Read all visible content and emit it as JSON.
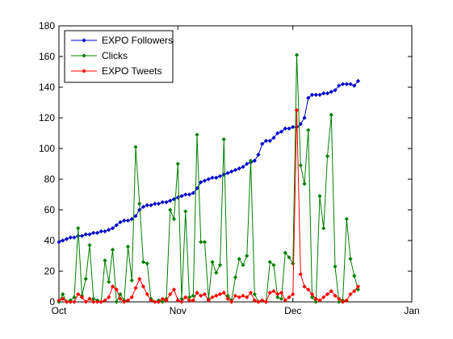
{
  "chart_data": {
    "type": "line",
    "title": "",
    "xlabel": "",
    "ylabel": "",
    "x_ticks": [
      "Oct",
      "Nov",
      "Dec",
      "Jan"
    ],
    "xlim": [
      "2012-10-01",
      "2013-01-01"
    ],
    "ylim": [
      0,
      180
    ],
    "y_ticks": [
      0,
      20,
      40,
      60,
      80,
      100,
      120,
      140,
      160,
      180
    ],
    "grid": false,
    "legend_position": "top-left",
    "series": [
      {
        "name": "EXPO Followers",
        "color": "#0000cc",
        "marker": "diamond",
        "x": [
          "2012-10-01",
          "2012-10-02",
          "2012-10-03",
          "2012-10-04",
          "2012-10-05",
          "2012-10-06",
          "2012-10-07",
          "2012-10-08",
          "2012-10-09",
          "2012-10-10",
          "2012-10-11",
          "2012-10-12",
          "2012-10-13",
          "2012-10-14",
          "2012-10-15",
          "2012-10-16",
          "2012-10-17",
          "2012-10-18",
          "2012-10-19",
          "2012-10-20",
          "2012-10-21",
          "2012-10-22",
          "2012-10-23",
          "2012-10-24",
          "2012-10-25",
          "2012-10-26",
          "2012-10-27",
          "2012-10-28",
          "2012-10-29",
          "2012-10-30",
          "2012-10-31",
          "2012-11-01",
          "2012-11-02",
          "2012-11-03",
          "2012-11-04",
          "2012-11-05",
          "2012-11-06",
          "2012-11-07",
          "2012-11-08",
          "2012-11-09",
          "2012-11-10",
          "2012-11-11",
          "2012-11-12",
          "2012-11-13",
          "2012-11-14",
          "2012-11-15",
          "2012-11-16",
          "2012-11-17",
          "2012-11-18",
          "2012-11-19",
          "2012-11-20",
          "2012-11-21",
          "2012-11-22",
          "2012-11-23",
          "2012-11-24",
          "2012-11-25",
          "2012-11-26",
          "2012-11-27",
          "2012-11-28",
          "2012-11-29",
          "2012-11-30",
          "2012-12-01",
          "2012-12-02",
          "2012-12-03",
          "2012-12-04",
          "2012-12-05",
          "2012-12-06",
          "2012-12-07",
          "2012-12-08",
          "2012-12-09",
          "2012-12-10",
          "2012-12-11",
          "2012-12-12",
          "2012-12-13",
          "2012-12-14",
          "2012-12-15",
          "2012-12-16",
          "2012-12-17",
          "2012-12-18"
        ],
        "values": [
          39,
          40,
          41,
          42,
          42,
          43,
          43,
          44,
          44,
          45,
          45,
          46,
          46,
          47,
          48,
          50,
          52,
          53,
          53,
          54,
          56,
          60,
          62,
          63,
          63,
          64,
          64,
          65,
          65,
          66,
          67,
          68,
          69,
          70,
          70,
          71,
          74,
          78,
          79,
          80,
          81,
          81,
          82,
          83,
          84,
          85,
          86,
          87,
          88,
          90,
          91,
          92,
          96,
          103,
          105,
          105,
          107,
          110,
          111,
          113,
          113,
          114,
          114,
          116,
          120,
          133,
          135,
          135,
          135,
          136,
          136,
          137,
          138,
          141,
          142,
          142,
          142,
          141,
          144
        ]
      },
      {
        "name": "Clicks",
        "color": "#008000",
        "marker": "diamond",
        "x": [
          "2012-10-01",
          "2012-10-02",
          "2012-10-03",
          "2012-10-04",
          "2012-10-05",
          "2012-10-06",
          "2012-10-07",
          "2012-10-08",
          "2012-10-09",
          "2012-10-10",
          "2012-10-11",
          "2012-10-12",
          "2012-10-13",
          "2012-10-14",
          "2012-10-15",
          "2012-10-16",
          "2012-10-17",
          "2012-10-18",
          "2012-10-19",
          "2012-10-20",
          "2012-10-21",
          "2012-10-22",
          "2012-10-23",
          "2012-10-24",
          "2012-10-25",
          "2012-10-26",
          "2012-10-27",
          "2012-10-28",
          "2012-10-29",
          "2012-10-30",
          "2012-10-31",
          "2012-11-01",
          "2012-11-02",
          "2012-11-03",
          "2012-11-04",
          "2012-11-05",
          "2012-11-06",
          "2012-11-07",
          "2012-11-08",
          "2012-11-09",
          "2012-11-10",
          "2012-11-11",
          "2012-11-12",
          "2012-11-13",
          "2012-11-14",
          "2012-11-15",
          "2012-11-16",
          "2012-11-17",
          "2012-11-18",
          "2012-11-19",
          "2012-11-20",
          "2012-11-21",
          "2012-11-22",
          "2012-11-23",
          "2012-11-24",
          "2012-11-25",
          "2012-11-26",
          "2012-11-27",
          "2012-11-28",
          "2012-11-29",
          "2012-11-30",
          "2012-12-01",
          "2012-12-02",
          "2012-12-03",
          "2012-12-04",
          "2012-12-05",
          "2012-12-06",
          "2012-12-07",
          "2012-12-08",
          "2012-12-09",
          "2012-12-10",
          "2012-12-11",
          "2012-12-12",
          "2012-12-13",
          "2012-12-14",
          "2012-12-15",
          "2012-12-16",
          "2012-12-17",
          "2012-12-18"
        ],
        "values": [
          0,
          5,
          0,
          1,
          3,
          48,
          4,
          15,
          37,
          2,
          1,
          0,
          27,
          13,
          34,
          0,
          5,
          1,
          36,
          14,
          101,
          64,
          26,
          25,
          2,
          0,
          1,
          0,
          2,
          60,
          54,
          90,
          2,
          59,
          3,
          4,
          109,
          39,
          39,
          2,
          26,
          19,
          24,
          106,
          4,
          1,
          16,
          28,
          24,
          30,
          92,
          5,
          0,
          1,
          0,
          26,
          24,
          3,
          2,
          32,
          29,
          25,
          161,
          89,
          77,
          112,
          3,
          0,
          69,
          48,
          95,
          122,
          23,
          0,
          1,
          54,
          28,
          17,
          8
        ]
      },
      {
        "name": "EXPO Tweets",
        "color": "#ff0000",
        "marker": "diamond",
        "x": [
          "2012-10-01",
          "2012-10-02",
          "2012-10-03",
          "2012-10-04",
          "2012-10-05",
          "2012-10-06",
          "2012-10-07",
          "2012-10-08",
          "2012-10-09",
          "2012-10-10",
          "2012-10-11",
          "2012-10-12",
          "2012-10-13",
          "2012-10-14",
          "2012-10-15",
          "2012-10-16",
          "2012-10-17",
          "2012-10-18",
          "2012-10-19",
          "2012-10-20",
          "2012-10-21",
          "2012-10-22",
          "2012-10-23",
          "2012-10-24",
          "2012-10-25",
          "2012-10-26",
          "2012-10-27",
          "2012-10-28",
          "2012-10-29",
          "2012-10-30",
          "2012-10-31",
          "2012-11-01",
          "2012-11-02",
          "2012-11-03",
          "2012-11-04",
          "2012-11-05",
          "2012-11-06",
          "2012-11-07",
          "2012-11-08",
          "2012-11-09",
          "2012-11-10",
          "2012-11-11",
          "2012-11-12",
          "2012-11-13",
          "2012-11-14",
          "2012-11-15",
          "2012-11-16",
          "2012-11-17",
          "2012-11-18",
          "2012-11-19",
          "2012-11-20",
          "2012-11-21",
          "2012-11-22",
          "2012-11-23",
          "2012-11-24",
          "2012-11-25",
          "2012-11-26",
          "2012-11-27",
          "2012-11-28",
          "2012-11-29",
          "2012-11-30",
          "2012-12-01",
          "2012-12-02",
          "2012-12-03",
          "2012-12-04",
          "2012-12-05",
          "2012-12-06",
          "2012-12-07",
          "2012-12-08",
          "2012-12-09",
          "2012-12-10",
          "2012-12-11",
          "2012-12-12",
          "2012-12-13",
          "2012-12-14",
          "2012-12-15",
          "2012-12-16",
          "2012-12-17",
          "2012-12-18"
        ],
        "values": [
          1,
          2,
          0,
          0,
          0,
          5,
          3,
          0,
          2,
          0,
          0,
          0,
          1,
          3,
          10,
          8,
          2,
          0,
          1,
          3,
          9,
          15,
          10,
          5,
          1,
          0,
          0,
          2,
          1,
          5,
          8,
          1,
          0,
          3,
          1,
          1,
          6,
          4,
          5,
          1,
          3,
          4,
          5,
          6,
          2,
          0,
          4,
          3,
          4,
          3,
          6,
          1,
          0,
          1,
          0,
          6,
          7,
          5,
          6,
          1,
          3,
          5,
          125,
          18,
          10,
          8,
          5,
          2,
          1,
          3,
          5,
          7,
          4,
          2,
          0,
          1,
          5,
          7,
          10
        ]
      }
    ]
  }
}
